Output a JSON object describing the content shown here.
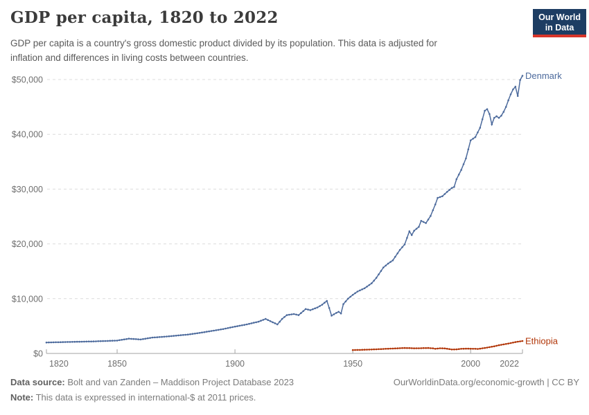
{
  "header": {
    "title": "GDP per capita, 1820 to 2022",
    "subtitle_lines": [
      "GDP per capita is a country's gross domestic product divided by its population. This data is adjusted for",
      "inflation and differences in living costs between countries."
    ],
    "logo": {
      "line1": "Our World",
      "line2": "in Data",
      "bg_color": "#1d3d63",
      "stripe_color": "#d8352a"
    }
  },
  "chart_data": {
    "type": "line",
    "title": "GDP per capita, 1820 to 2022",
    "xlabel": "",
    "ylabel": "",
    "unit": "international-$ at 2011 prices",
    "x_range": [
      1820,
      2022
    ],
    "y_range": [
      0,
      52500
    ],
    "x_ticks": [
      1820,
      1850,
      1900,
      1950,
      2000,
      2022
    ],
    "y_ticks": [
      {
        "value": 0,
        "label": "$0"
      },
      {
        "value": 10000,
        "label": "$10,000"
      },
      {
        "value": 20000,
        "label": "$20,000"
      },
      {
        "value": 30000,
        "label": "$30,000"
      },
      {
        "value": 40000,
        "label": "$40,000"
      },
      {
        "value": 50000,
        "label": "$50,000"
      }
    ],
    "grid": "horizontal-dashed",
    "legend": "end-of-line-labels",
    "series": [
      {
        "name": "Denmark",
        "color": "#4c6a9c",
        "points": [
          [
            1820,
            2000
          ],
          [
            1830,
            2100
          ],
          [
            1840,
            2200
          ],
          [
            1850,
            2350
          ],
          [
            1855,
            2700
          ],
          [
            1860,
            2550
          ],
          [
            1865,
            2900
          ],
          [
            1870,
            3050
          ],
          [
            1875,
            3250
          ],
          [
            1880,
            3450
          ],
          [
            1885,
            3750
          ],
          [
            1890,
            4100
          ],
          [
            1895,
            4450
          ],
          [
            1900,
            4900
          ],
          [
            1905,
            5300
          ],
          [
            1910,
            5800
          ],
          [
            1913,
            6300
          ],
          [
            1915,
            5900
          ],
          [
            1917,
            5500
          ],
          [
            1918,
            5300
          ],
          [
            1920,
            6300
          ],
          [
            1922,
            7000
          ],
          [
            1925,
            7200
          ],
          [
            1927,
            7000
          ],
          [
            1930,
            8100
          ],
          [
            1932,
            7900
          ],
          [
            1935,
            8400
          ],
          [
            1937,
            8900
          ],
          [
            1939,
            9600
          ],
          [
            1940,
            8300
          ],
          [
            1941,
            6900
          ],
          [
            1943,
            7400
          ],
          [
            1944,
            7600
          ],
          [
            1945,
            7300
          ],
          [
            1946,
            9000
          ],
          [
            1948,
            10000
          ],
          [
            1950,
            10700
          ],
          [
            1952,
            11300
          ],
          [
            1955,
            11900
          ],
          [
            1958,
            12800
          ],
          [
            1960,
            13800
          ],
          [
            1963,
            15700
          ],
          [
            1965,
            16400
          ],
          [
            1967,
            17000
          ],
          [
            1970,
            18900
          ],
          [
            1972,
            19900
          ],
          [
            1974,
            22300
          ],
          [
            1975,
            21600
          ],
          [
            1976,
            22400
          ],
          [
            1978,
            23100
          ],
          [
            1979,
            24200
          ],
          [
            1981,
            23800
          ],
          [
            1983,
            25100
          ],
          [
            1985,
            27200
          ],
          [
            1986,
            28400
          ],
          [
            1988,
            28700
          ],
          [
            1990,
            29500
          ],
          [
            1992,
            30200
          ],
          [
            1993,
            30400
          ],
          [
            1994,
            31800
          ],
          [
            1996,
            33500
          ],
          [
            1998,
            35600
          ],
          [
            2000,
            38900
          ],
          [
            2002,
            39500
          ],
          [
            2004,
            41200
          ],
          [
            2006,
            44300
          ],
          [
            2007,
            44600
          ],
          [
            2008,
            43700
          ],
          [
            2009,
            41800
          ],
          [
            2010,
            43000
          ],
          [
            2011,
            43300
          ],
          [
            2012,
            43000
          ],
          [
            2013,
            43400
          ],
          [
            2014,
            44100
          ],
          [
            2015,
            45000
          ],
          [
            2016,
            46200
          ],
          [
            2017,
            47300
          ],
          [
            2018,
            48200
          ],
          [
            2019,
            48700
          ],
          [
            2020,
            47000
          ],
          [
            2021,
            49900
          ],
          [
            2022,
            50700
          ]
        ]
      },
      {
        "name": "Ethiopia",
        "color": "#b13507",
        "points": [
          [
            1950,
            620
          ],
          [
            1953,
            650
          ],
          [
            1955,
            680
          ],
          [
            1958,
            720
          ],
          [
            1960,
            760
          ],
          [
            1963,
            820
          ],
          [
            1965,
            860
          ],
          [
            1968,
            920
          ],
          [
            1970,
            960
          ],
          [
            1972,
            1000
          ],
          [
            1974,
            980
          ],
          [
            1976,
            940
          ],
          [
            1978,
            950
          ],
          [
            1980,
            980
          ],
          [
            1982,
            1000
          ],
          [
            1984,
            930
          ],
          [
            1985,
            850
          ],
          [
            1987,
            950
          ],
          [
            1989,
            920
          ],
          [
            1991,
            800
          ],
          [
            1992,
            720
          ],
          [
            1994,
            750
          ],
          [
            1996,
            850
          ],
          [
            1998,
            870
          ],
          [
            2000,
            860
          ],
          [
            2002,
            840
          ],
          [
            2003,
            820
          ],
          [
            2004,
            870
          ],
          [
            2005,
            950
          ],
          [
            2006,
            1000
          ],
          [
            2008,
            1150
          ],
          [
            2010,
            1300
          ],
          [
            2012,
            1500
          ],
          [
            2014,
            1650
          ],
          [
            2016,
            1800
          ],
          [
            2018,
            1980
          ],
          [
            2020,
            2150
          ],
          [
            2022,
            2270
          ]
        ]
      }
    ]
  },
  "footer": {
    "source_label": "Data source:",
    "source_value": " Bolt and van Zanden – Maddison Project Database 2023",
    "note_label": "Note:",
    "note_value": " This data is expressed in international-$ at 2011 prices.",
    "credit": "OurWorldinData.org/economic-growth | CC BY"
  }
}
